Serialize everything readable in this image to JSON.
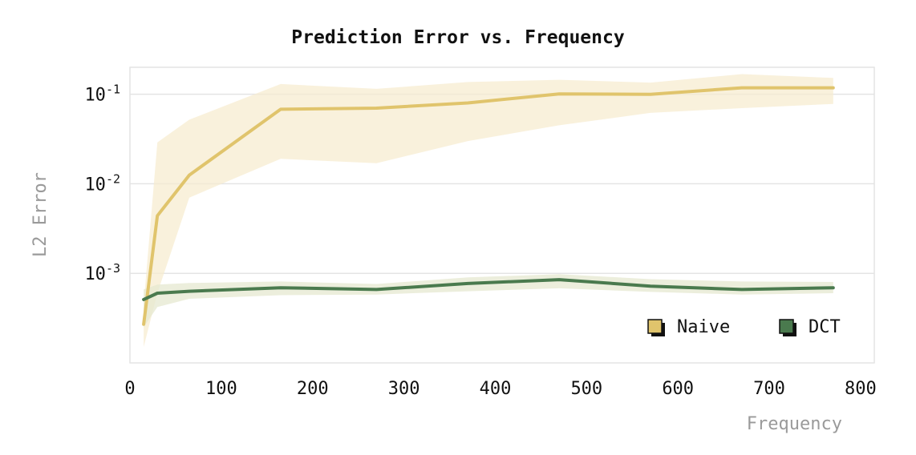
{
  "chart_data": {
    "type": "line",
    "title": "Prediction Error vs. Frequency",
    "xlabel": "Frequency",
    "ylabel": "L2 Error",
    "xlim": [
      0,
      815
    ],
    "ylim": [
      0.0001,
      0.2
    ],
    "yscale": "log",
    "x_ticks": [
      "0",
      "100",
      "200",
      "300",
      "400",
      "500",
      "600",
      "700",
      "800"
    ],
    "y_ticks": [
      {
        "base": "10",
        "exp": "-1",
        "value": 0.1
      },
      {
        "base": "10",
        "exp": "-2",
        "value": 0.01
      },
      {
        "base": "10",
        "exp": "-3",
        "value": 0.001
      }
    ],
    "grid": "horizontal",
    "legend": "bottom-right",
    "series": [
      {
        "name": "Naive",
        "color": "#e0c46c",
        "band_color": "#f7ecd0",
        "x": [
          15,
          30,
          65,
          165,
          270,
          370,
          470,
          570,
          670,
          770
        ],
        "y": [
          0.00027,
          0.0044,
          0.0125,
          0.068,
          0.07,
          0.08,
          0.101,
          0.1,
          0.118,
          0.118
        ],
        "lower": [
          0.00015,
          0.0006,
          0.007,
          0.019,
          0.017,
          0.03,
          0.045,
          0.062,
          0.07,
          0.078
        ],
        "upper": [
          0.00045,
          0.029,
          0.052,
          0.13,
          0.115,
          0.137,
          0.145,
          0.135,
          0.168,
          0.152
        ]
      },
      {
        "name": "DCT",
        "color": "#4a7a4e",
        "band_color": "#e5e8d0",
        "x": [
          15,
          30,
          65,
          165,
          270,
          370,
          470,
          570,
          670,
          770
        ],
        "y": [
          0.00051,
          0.0006,
          0.00063,
          0.00069,
          0.00066,
          0.00077,
          0.00085,
          0.00072,
          0.00066,
          0.00069
        ],
        "lower": [
          0.00025,
          0.00042,
          0.00052,
          0.00057,
          0.00058,
          0.00063,
          0.00068,
          0.00062,
          0.00058,
          0.0006
        ],
        "upper": [
          0.00066,
          0.00075,
          0.00078,
          0.00081,
          0.00076,
          0.0009,
          0.00098,
          0.00086,
          0.00081,
          0.0008
        ]
      }
    ]
  }
}
